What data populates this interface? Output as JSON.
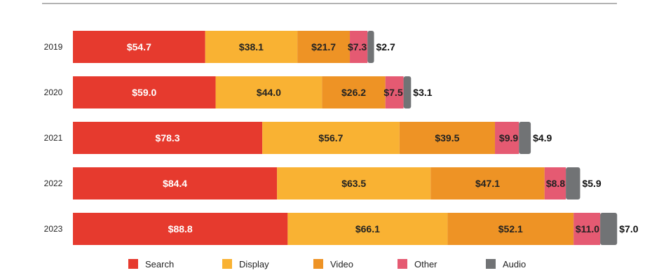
{
  "chart_data": {
    "type": "bar",
    "orientation": "horizontal",
    "stacked": true,
    "categories": [
      "2019",
      "2020",
      "2021",
      "2022",
      "2023"
    ],
    "series": [
      {
        "name": "Search",
        "color": "#e63a2e",
        "values": [
          54.7,
          59.0,
          78.3,
          84.4,
          88.8
        ],
        "labels": [
          "$54.7",
          "$59.0",
          "$78.3",
          "$84.4",
          "$88.8"
        ]
      },
      {
        "name": "Display",
        "color": "#f9b233",
        "values": [
          38.1,
          44.0,
          56.7,
          63.5,
          66.1
        ],
        "labels": [
          "$38.1",
          "$44.0",
          "$56.7",
          "$63.5",
          "$66.1"
        ]
      },
      {
        "name": "Video",
        "color": "#ee9325",
        "values": [
          21.7,
          26.2,
          39.5,
          47.1,
          52.1
        ],
        "labels": [
          "$21.7",
          "$26.2",
          "$39.5",
          "$47.1",
          "$52.1"
        ]
      },
      {
        "name": "Other",
        "color": "#e55a72",
        "values": [
          7.3,
          7.5,
          9.9,
          8.8,
          11.0
        ],
        "labels": [
          "$7.3",
          "$7.5",
          "$9.9",
          "$8.8",
          "$11.0"
        ]
      },
      {
        "name": "Audio",
        "color": "#717375",
        "values": [
          2.7,
          3.1,
          4.9,
          5.9,
          7.0
        ],
        "labels": [
          "$2.7",
          "$3.1",
          "$4.9",
          "$5.9",
          "$7.0"
        ]
      }
    ],
    "legend_position": "bottom",
    "grid": false,
    "title": "",
    "xlabel": "",
    "ylabel": ""
  }
}
